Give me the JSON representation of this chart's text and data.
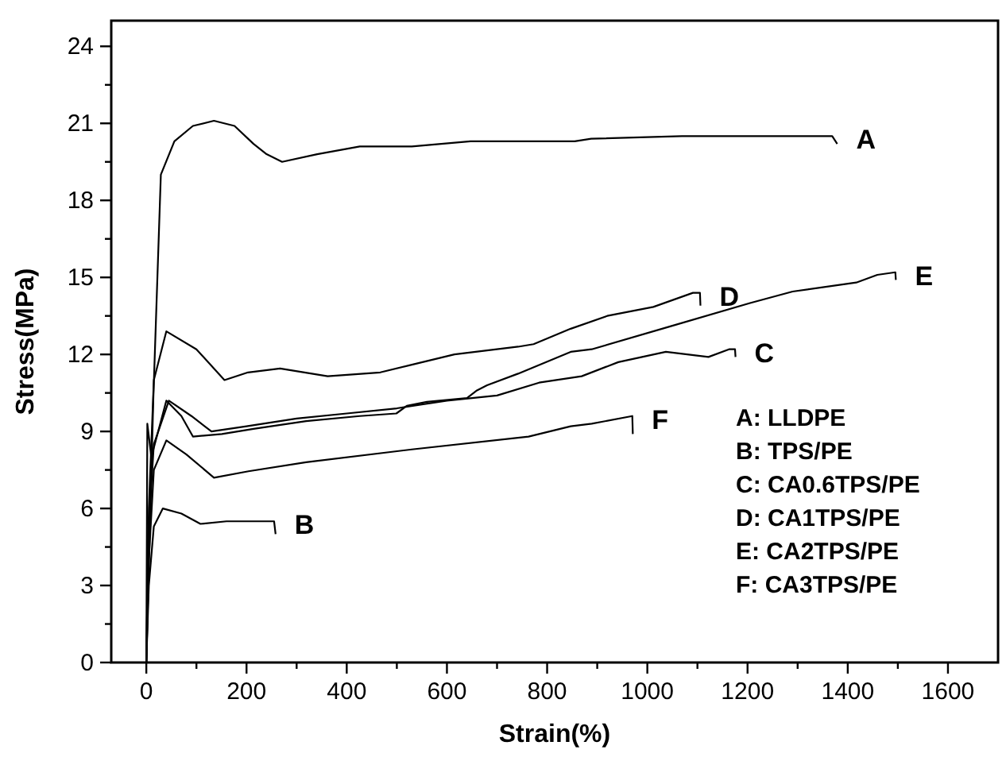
{
  "chart_data": {
    "type": "line",
    "xlabel": "Strain(%)",
    "ylabel": "Stress(MPa)",
    "xlim": [
      -70,
      1700
    ],
    "ylim": [
      0,
      25
    ],
    "xticks": [
      0,
      {
        "value": 100,
        "label": null
      },
      200,
      {
        "value": 300,
        "label": null
      },
      400,
      {
        "value": 500,
        "label": null
      },
      600,
      {
        "value": 700,
        "label": null
      },
      800,
      {
        "value": 900,
        "label": null
      },
      1000,
      {
        "value": 1100,
        "label": null
      },
      1200,
      {
        "value": 1300,
        "label": null
      },
      1400,
      {
        "value": 1500,
        "label": null
      },
      1600
    ],
    "yticks": [
      0,
      {
        "value": 1.5,
        "label": null
      },
      3,
      {
        "value": 4.5,
        "label": null
      },
      6,
      {
        "value": 7.5,
        "label": null
      },
      9,
      {
        "value": 10.5,
        "label": null
      },
      12,
      {
        "value": 13.5,
        "label": null
      },
      15,
      {
        "value": 16.5,
        "label": null
      },
      18,
      {
        "value": 19.5,
        "label": null
      },
      21,
      {
        "value": 22.5,
        "label": null
      },
      24
    ],
    "grid": false,
    "marker": "none",
    "line_style": "solid",
    "series": [
      {
        "name": "A",
        "color": "#000000",
        "x": [
          0,
          14,
          29,
          56,
          93,
          135,
          176,
          214,
          240,
          271,
          341,
          426,
          530,
          647,
          742,
          855,
          888,
          1069,
          1369,
          1379
        ],
        "values": [
          0,
          10.3,
          19,
          20.3,
          20.9,
          21.1,
          20.9,
          20.2,
          19.8,
          19.5,
          19.8,
          20.1,
          20.1,
          20.3,
          20.3,
          20.3,
          20.4,
          20.5,
          20.5,
          20.2
        ]
      },
      {
        "name": "B",
        "color": "#000000",
        "x": [
          0,
          5,
          15,
          33,
          70,
          108,
          160,
          255,
          258
        ],
        "values": [
          0,
          3,
          5.3,
          6,
          5.8,
          5.4,
          5.5,
          5.5,
          5
        ]
      },
      {
        "name": "C",
        "color": "#000000",
        "x": [
          0,
          4,
          15,
          45,
          90,
          130,
          200,
          300,
          400,
          500,
          600,
          700,
          784,
          869,
          942,
          1037,
          1122,
          1163,
          1175,
          1176
        ],
        "values": [
          0,
          5,
          8.5,
          10.2,
          9.6,
          9,
          9.2,
          9.5,
          9.7,
          9.9,
          10.2,
          10.4,
          10.9,
          11.15,
          11.7,
          12.1,
          11.9,
          12.2,
          12.2,
          11.9
        ]
      },
      {
        "name": "D",
        "color": "#000000",
        "x": [
          0,
          5,
          15,
          40,
          100,
          156,
          203,
          267,
          362,
          467,
          530,
          615,
          742,
          773,
          847,
          920,
          1012,
          1091,
          1105,
          1106
        ],
        "values": [
          0,
          6,
          11,
          12.9,
          12.2,
          11,
          11.3,
          11.45,
          11.15,
          11.3,
          11.6,
          12,
          12.3,
          12.4,
          13,
          13.5,
          13.85,
          14.4,
          14.4,
          13.9
        ]
      },
      {
        "name": "E",
        "color": "#000000",
        "x": [
          0,
          2,
          10,
          40,
          70,
          93,
          151,
          214,
          319,
          426,
          499,
          520,
          560,
          640,
          660,
          680,
          742,
          847,
          889,
          1047,
          1205,
          1290,
          1417,
          1459,
          1495,
          1496
        ],
        "values": [
          0,
          9.3,
          8,
          10.2,
          9.6,
          8.8,
          8.9,
          9.1,
          9.4,
          9.6,
          9.7,
          10,
          10.15,
          10.3,
          10.6,
          10.8,
          11.25,
          12.1,
          12.2,
          13.1,
          14,
          14.45,
          14.8,
          15.1,
          15.2,
          14.9
        ]
      },
      {
        "name": "F",
        "color": "#000000",
        "x": [
          0,
          5,
          15,
          40,
          80,
          135,
          204,
          319,
          530,
          763,
          847,
          889,
          970,
          971
        ],
        "values": [
          0,
          4,
          7.5,
          8.65,
          8.1,
          7.2,
          7.45,
          7.8,
          8.3,
          8.8,
          9.2,
          9.3,
          9.6,
          8.9
        ]
      }
    ],
    "annotations": [
      "A: LLDPE",
      "B: TPS/PE",
      "C: CA0.6TPS/PE",
      "D: CA1TPS/PE",
      "E: CA2TPS/PE",
      "F: CA3TPS/PE"
    ]
  }
}
